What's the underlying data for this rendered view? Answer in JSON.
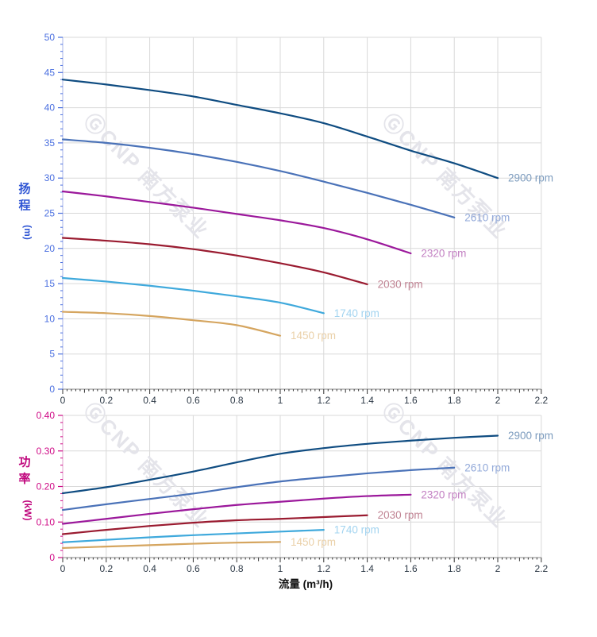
{
  "figure": {
    "background": "#ffffff",
    "grid_color": "#d9d9d9",
    "x_axis_line_color": "#8a8a8a",
    "x_tick_color": "#333333",
    "x_tick_label_color": "#2e3a47"
  },
  "watermark": {
    "text": "ⒼCNP 南方泵业",
    "color": "#e4e4ea"
  },
  "chart_data": [
    {
      "type": "line",
      "title": "",
      "ylabel": "扬程 (m)",
      "ylabel_chars": [
        "扬",
        "程"
      ],
      "ylabel_unit": "(m)",
      "xlabel": "",
      "xlim": [
        0,
        2.2
      ],
      "ylim": [
        0,
        50
      ],
      "grid": true,
      "legend_position": "curve-end-labels",
      "axis_label_color": "#2f55d4",
      "tick_label_color": "#4a6fe0",
      "spine_color": "#a9b6ea",
      "xticks": [
        0,
        0.2,
        0.4,
        0.6,
        0.8,
        1,
        1.2,
        1.4,
        1.6,
        1.8,
        2,
        2.2
      ],
      "xticklabels": [
        "0",
        "0.2",
        "0.4",
        "0.6",
        "0.8",
        "1",
        "1.2",
        "1.4",
        "1.6",
        "1.8",
        "2",
        "2.2"
      ],
      "yticks": [
        0,
        5,
        10,
        15,
        20,
        25,
        30,
        35,
        40,
        45,
        50
      ],
      "yticklabels": [
        "0",
        "5",
        "10",
        "15",
        "20",
        "25",
        "30",
        "35",
        "40",
        "45",
        "50"
      ],
      "series": [
        {
          "name": "2900 rpm",
          "color": "#0f4c81",
          "label_color": "#7d9cbe",
          "x": [
            0,
            0.2,
            0.4,
            0.6,
            0.8,
            1.0,
            1.2,
            1.4,
            1.6,
            1.8,
            2.0
          ],
          "y": [
            44.0,
            43.3,
            42.5,
            41.6,
            40.4,
            39.2,
            37.8,
            35.9,
            33.9,
            32.1,
            30.0
          ]
        },
        {
          "name": "2610 rpm",
          "color": "#4a72b8",
          "label_color": "#92a9d9",
          "x": [
            0,
            0.2,
            0.4,
            0.6,
            0.8,
            1.0,
            1.2,
            1.4,
            1.6,
            1.8
          ],
          "y": [
            35.5,
            35.0,
            34.3,
            33.4,
            32.3,
            31.0,
            29.5,
            27.9,
            26.2,
            24.4
          ]
        },
        {
          "name": "2320 rpm",
          "color": "#9b189b",
          "label_color": "#c27fc2",
          "x": [
            0,
            0.2,
            0.4,
            0.6,
            0.8,
            1.0,
            1.2,
            1.4,
            1.6
          ],
          "y": [
            28.1,
            27.4,
            26.6,
            25.8,
            24.9,
            24.0,
            22.9,
            21.3,
            19.3
          ]
        },
        {
          "name": "2030 rpm",
          "color": "#9a1b30",
          "label_color": "#c08393",
          "x": [
            0,
            0.2,
            0.4,
            0.6,
            0.8,
            1.0,
            1.2,
            1.4
          ],
          "y": [
            21.5,
            21.1,
            20.6,
            19.9,
            19.0,
            17.9,
            16.6,
            14.9
          ]
        },
        {
          "name": "1740 rpm",
          "color": "#3fa9dc",
          "label_color": "#a3d4f0",
          "x": [
            0,
            0.2,
            0.4,
            0.6,
            0.8,
            1.0,
            1.2
          ],
          "y": [
            15.8,
            15.3,
            14.7,
            14.0,
            13.2,
            12.3,
            10.8
          ]
        },
        {
          "name": "1450 rpm",
          "color": "#d5a55f",
          "label_color": "#ead0a8",
          "x": [
            0,
            0.2,
            0.4,
            0.6,
            0.8,
            1.0
          ],
          "y": [
            11.0,
            10.8,
            10.4,
            9.8,
            9.1,
            7.6
          ]
        }
      ]
    },
    {
      "type": "line",
      "title": "",
      "ylabel": "功率 (kW)",
      "ylabel_chars": [
        "功",
        "率"
      ],
      "ylabel_unit": "(kW)",
      "xlabel": "流量 (m³/h)",
      "xlim": [
        0,
        2.2
      ],
      "ylim": [
        0,
        0.4
      ],
      "grid": true,
      "legend_position": "curve-end-labels",
      "axis_label_color": "#c0077d",
      "tick_label_color": "#cf0a86",
      "spine_color": "#e0a2cc",
      "xticks": [
        0,
        0.2,
        0.4,
        0.6,
        0.8,
        1,
        1.2,
        1.4,
        1.6,
        1.8,
        2,
        2.2
      ],
      "xticklabels": [
        "0",
        "0.2",
        "0.4",
        "0.6",
        "0.8",
        "1",
        "1.2",
        "1.4",
        "1.6",
        "1.8",
        "2",
        "2.2"
      ],
      "yticks": [
        0,
        0.1,
        0.2,
        0.3,
        0.4
      ],
      "yticklabels": [
        "0",
        "0.10",
        "0.20",
        "0.30",
        "0.40"
      ],
      "series": [
        {
          "name": "2900 rpm",
          "color": "#0f4c81",
          "label_color": "#7d9cbe",
          "x": [
            0,
            0.2,
            0.4,
            0.6,
            0.8,
            1.0,
            1.2,
            1.4,
            1.6,
            1.8,
            2.0
          ],
          "y": [
            0.181,
            0.198,
            0.219,
            0.242,
            0.268,
            0.292,
            0.308,
            0.32,
            0.329,
            0.337,
            0.343
          ]
        },
        {
          "name": "2610 rpm",
          "color": "#4a72b8",
          "label_color": "#92a9d9",
          "x": [
            0,
            0.2,
            0.4,
            0.6,
            0.8,
            1.0,
            1.2,
            1.4,
            1.6,
            1.8
          ],
          "y": [
            0.134,
            0.15,
            0.165,
            0.18,
            0.198,
            0.214,
            0.226,
            0.237,
            0.246,
            0.253
          ]
        },
        {
          "name": "2320 rpm",
          "color": "#9b189b",
          "label_color": "#c27fc2",
          "x": [
            0,
            0.2,
            0.4,
            0.6,
            0.8,
            1.0,
            1.2,
            1.4,
            1.6
          ],
          "y": [
            0.095,
            0.109,
            0.123,
            0.136,
            0.148,
            0.157,
            0.166,
            0.173,
            0.177
          ]
        },
        {
          "name": "2030 rpm",
          "color": "#9a1b30",
          "label_color": "#c08393",
          "x": [
            0,
            0.2,
            0.4,
            0.6,
            0.8,
            1.0,
            1.2,
            1.4
          ],
          "y": [
            0.066,
            0.078,
            0.089,
            0.098,
            0.105,
            0.109,
            0.114,
            0.119
          ]
        },
        {
          "name": "1740 rpm",
          "color": "#3fa9dc",
          "label_color": "#a3d4f0",
          "x": [
            0,
            0.2,
            0.4,
            0.6,
            0.8,
            1.0,
            1.2
          ],
          "y": [
            0.043,
            0.05,
            0.057,
            0.063,
            0.068,
            0.073,
            0.078
          ]
        },
        {
          "name": "1450 rpm",
          "color": "#d5a55f",
          "label_color": "#ead0a8",
          "x": [
            0,
            0.2,
            0.4,
            0.6,
            0.8,
            1.0
          ],
          "y": [
            0.027,
            0.031,
            0.035,
            0.039,
            0.042,
            0.044
          ]
        }
      ]
    }
  ]
}
